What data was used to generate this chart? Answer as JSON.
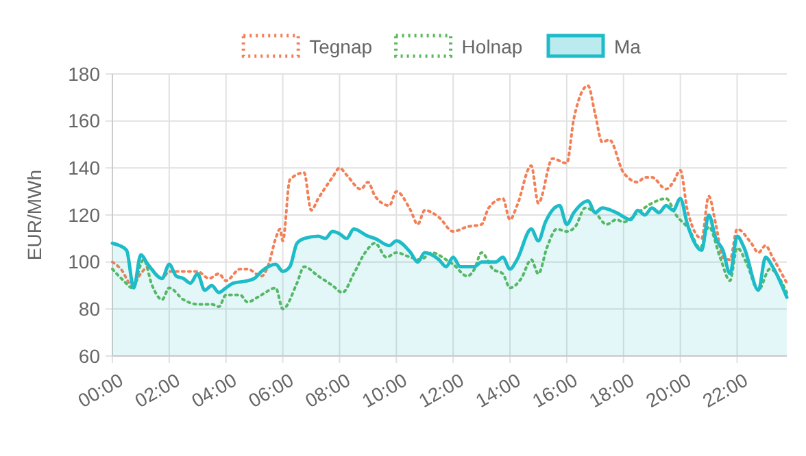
{
  "chart_data": {
    "type": "line",
    "ylabel": "EUR/MWh",
    "legend": "top",
    "grid": true,
    "marker": "none",
    "xlim": [
      0,
      23.75
    ],
    "ylim": [
      60,
      180
    ],
    "yticks": [
      60,
      80,
      100,
      120,
      140,
      160,
      180
    ],
    "xticks": [
      {
        "value": 0,
        "label": "00:00"
      },
      {
        "value": 2,
        "label": "02:00"
      },
      {
        "value": 4,
        "label": "04:00"
      },
      {
        "value": 6,
        "label": "06:00"
      },
      {
        "value": 8,
        "label": "08:00"
      },
      {
        "value": 10,
        "label": "10:00"
      },
      {
        "value": 12,
        "label": "12:00"
      },
      {
        "value": 14,
        "label": "14:00"
      },
      {
        "value": 16,
        "label": "16:00"
      },
      {
        "value": 18,
        "label": "18:00"
      },
      {
        "value": 20,
        "label": "20:00"
      },
      {
        "value": 22,
        "label": "22:00"
      }
    ],
    "series": [
      {
        "name": "Tegnap",
        "line_style": "dotted",
        "color": "#f47f56",
        "x": [
          0,
          0.3,
          0.7,
          1,
          1.25,
          1.75,
          2,
          2.5,
          3,
          3.4,
          3.75,
          4,
          4.5,
          4.75,
          5.25,
          5.5,
          5.75,
          5.9,
          6,
          6.25,
          6.75,
          7,
          7.25,
          7.75,
          8,
          8.25,
          8.75,
          9,
          9.25,
          9.75,
          10,
          10.5,
          10.75,
          11,
          11.5,
          12,
          12.5,
          13,
          13.25,
          13.75,
          14,
          14.25,
          14.75,
          15,
          15.5,
          16,
          16.25,
          16.75,
          17,
          17.25,
          17.5,
          18,
          18.5,
          18.75,
          19,
          19.5,
          19.75,
          20,
          20.25,
          20.75,
          21,
          21.25,
          21.5,
          21.75,
          22,
          22.5,
          22.75,
          23,
          23.25,
          23.75
        ],
        "values": [
          100,
          97,
          90,
          95,
          98,
          93,
          96,
          96,
          96,
          93,
          95,
          92,
          97,
          97,
          94,
          99,
          110,
          114,
          109,
          135,
          138,
          122,
          127,
          136,
          140,
          137,
          131,
          134,
          128,
          124,
          130,
          122,
          116,
          122,
          119,
          113,
          115,
          116,
          123,
          127,
          118,
          124,
          141,
          125,
          144,
          142,
          161,
          175,
          163,
          151,
          152,
          138,
          134,
          136,
          136,
          131,
          134,
          139,
          122,
          110,
          128,
          116,
          102,
          101,
          114,
          108,
          104,
          107,
          102,
          91
        ]
      },
      {
        "name": "Holnap",
        "line_style": "dotted",
        "color": "#5cb85c",
        "x": [
          0,
          0.4,
          0.7,
          1.1,
          1.4,
          1.75,
          2,
          2.5,
          3,
          3.5,
          3.75,
          4,
          4.5,
          4.75,
          5.25,
          5.75,
          6,
          6.5,
          6.75,
          7.25,
          7.75,
          8.1,
          8.5,
          8.9,
          9.25,
          9.65,
          10,
          10.5,
          10.85,
          11.25,
          11.75,
          12,
          12.5,
          12.75,
          13,
          13.4,
          13.75,
          14,
          14.4,
          14.75,
          15,
          15.3,
          15.65,
          16,
          16.3,
          16.65,
          17,
          17.4,
          17.75,
          18,
          18.5,
          19,
          19.5,
          19.85,
          20.3,
          20.7,
          21,
          21.4,
          21.75,
          22,
          22.35,
          22.75,
          23.15,
          23.75
        ],
        "values": [
          97,
          92,
          89,
          101,
          90,
          84,
          89,
          84,
          82,
          82,
          81,
          86,
          86,
          83,
          86,
          89,
          80,
          91,
          98,
          94,
          90,
          87,
          95,
          104,
          108,
          102,
          104,
          102,
          101,
          104,
          101,
          99,
          94,
          97,
          104,
          97,
          95,
          89,
          93,
          101,
          95,
          106,
          114,
          113,
          115,
          123,
          121,
          116,
          118,
          117,
          121,
          125,
          127,
          120,
          114,
          106,
          115,
          102,
          92,
          106,
          99,
          88,
          97,
          87
        ]
      },
      {
        "name": "Ma",
        "type": "area",
        "line_style": "solid",
        "color": "#1ebcc8",
        "x": [
          0,
          0.25,
          0.5,
          0.75,
          1,
          1.25,
          1.75,
          2,
          2.25,
          2.5,
          2.75,
          3,
          3.25,
          3.5,
          3.75,
          4,
          4.25,
          4.75,
          5,
          5.25,
          5.75,
          6,
          6.25,
          6.5,
          6.75,
          7.25,
          7.5,
          7.75,
          8,
          8.25,
          8.5,
          9,
          9.25,
          9.75,
          10,
          10.5,
          10.75,
          11,
          11.5,
          11.75,
          12,
          12.25,
          12.75,
          13,
          13.5,
          13.75,
          14,
          14.25,
          14.75,
          15,
          15.25,
          15.75,
          16,
          16.25,
          16.75,
          17,
          17.25,
          17.75,
          18.25,
          18.5,
          18.75,
          19,
          19.25,
          19.5,
          19.75,
          20,
          20.25,
          20.75,
          21,
          21.25,
          21.5,
          21.75,
          22,
          22.25,
          22.75,
          23,
          23.25,
          23.75
        ],
        "values": [
          108,
          107,
          105,
          89,
          103,
          99,
          93,
          99,
          94,
          93,
          91,
          95,
          88,
          90,
          87,
          89,
          91,
          92,
          93,
          96,
          99,
          96,
          98,
          108,
          110,
          111,
          110,
          113,
          112,
          110,
          114,
          111,
          110,
          107,
          109,
          104,
          100,
          104,
          101,
          98,
          102,
          98,
          98,
          100,
          100,
          102,
          97,
          101,
          114,
          109,
          117,
          124,
          116,
          121,
          126,
          121,
          123,
          121,
          118,
          122,
          120,
          123,
          121,
          124,
          122,
          127,
          116,
          105,
          120,
          110,
          105,
          95,
          111,
          106,
          88,
          102,
          98,
          85
        ]
      }
    ]
  }
}
